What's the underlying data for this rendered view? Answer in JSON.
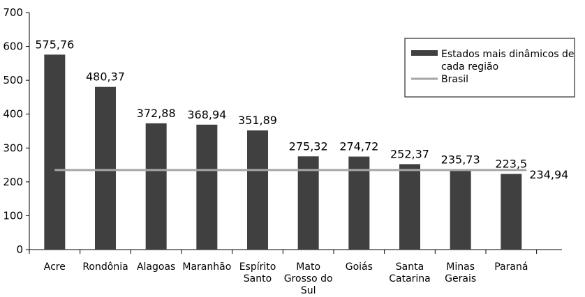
{
  "chart_data": {
    "type": "bar",
    "categories": [
      [
        "Acre"
      ],
      [
        "Rondônia"
      ],
      [
        "Alagoas"
      ],
      [
        "Maranhão"
      ],
      [
        "Espírito",
        "Santo"
      ],
      [
        "Mato",
        "Grosso do",
        "Sul"
      ],
      [
        "Goiás"
      ],
      [
        "Santa",
        "Catarina"
      ],
      [
        "Minas",
        "Gerais"
      ],
      [
        "Paraná"
      ]
    ],
    "series": [
      {
        "name": [
          "Estados mais dinâmicos de",
          "cada região"
        ],
        "values": [
          575.76,
          480.37,
          372.88,
          368.94,
          351.89,
          275.32,
          274.72,
          252.37,
          235.73,
          223.5
        ],
        "labels": [
          "575,76",
          "480,37",
          "372,88",
          "368,94",
          "351,89",
          "275,32",
          "274,72",
          "252,37",
          "235,73",
          "223,5"
        ],
        "color": "#404040"
      },
      {
        "name": "Brasil",
        "type": "line",
        "value": 234.94,
        "label": "234,94",
        "color": "#a6a6a6"
      }
    ],
    "ylim": [
      0,
      700
    ],
    "yticks": [
      0,
      100,
      200,
      300,
      400,
      500,
      600,
      700
    ],
    "legend_position": "top-right",
    "grid": false
  }
}
